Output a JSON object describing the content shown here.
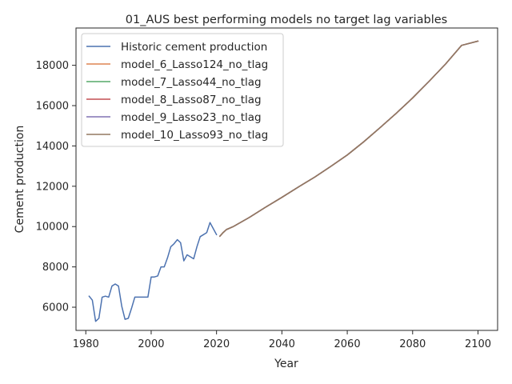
{
  "chart_data": {
    "type": "line",
    "title": "01_AUS best performing models no target lag variables",
    "xlabel": "Year",
    "ylabel": "Cement production",
    "xlim": [
      1977,
      2106
    ],
    "ylim": [
      4850,
      19850
    ],
    "x_ticks": [
      1980,
      2000,
      2020,
      2040,
      2060,
      2080,
      2100
    ],
    "y_ticks": [
      6000,
      8000,
      10000,
      12000,
      14000,
      16000,
      18000
    ],
    "grid": false,
    "legend_position": "top-left",
    "series": [
      {
        "name": "Historic cement production",
        "color": "#4c72b0",
        "x": [
          1981,
          1982,
          1983,
          1984,
          1985,
          1986,
          1987,
          1988,
          1989,
          1990,
          1991,
          1992,
          1993,
          1994,
          1995,
          1996,
          1997,
          1998,
          1999,
          2000,
          2001,
          2002,
          2003,
          2004,
          2005,
          2006,
          2007,
          2008,
          2009,
          2010,
          2011,
          2012,
          2013,
          2014,
          2015,
          2016,
          2017,
          2018,
          2019,
          2020
        ],
        "y": [
          6550,
          6350,
          5300,
          5450,
          6500,
          6550,
          6500,
          7050,
          7150,
          7050,
          6050,
          5400,
          5450,
          5950,
          6500,
          6500,
          6500,
          6500,
          6500,
          7500,
          7500,
          7550,
          8000,
          8000,
          8450,
          9000,
          9150,
          9350,
          9200,
          8300,
          8600,
          8500,
          8400,
          9000,
          9500,
          9600,
          9700,
          10200,
          9900,
          9600
        ]
      },
      {
        "name": "model_6_Lasso124_no_tlag",
        "color": "#dd8452",
        "forecast": true
      },
      {
        "name": "model_7_Lasso44_no_tlag",
        "color": "#55a868",
        "forecast": true
      },
      {
        "name": "model_8_Lasso87_no_tlag",
        "color": "#c44e52",
        "forecast": true
      },
      {
        "name": "model_9_Lasso23_no_tlag",
        "color": "#8172b3",
        "forecast": true
      },
      {
        "name": "model_10_Lasso93_no_tlag",
        "color": "#937860",
        "forecast": true
      }
    ],
    "forecast": {
      "x": [
        2021,
        2022,
        2023,
        2025,
        2030,
        2035,
        2040,
        2045,
        2050,
        2055,
        2060,
        2065,
        2070,
        2075,
        2080,
        2085,
        2090,
        2095,
        2100
      ],
      "y": [
        9520,
        9700,
        9850,
        9990,
        10450,
        10960,
        11450,
        11960,
        12450,
        12990,
        13550,
        14200,
        14900,
        15620,
        16380,
        17200,
        18050,
        18990,
        19200
      ]
    }
  }
}
